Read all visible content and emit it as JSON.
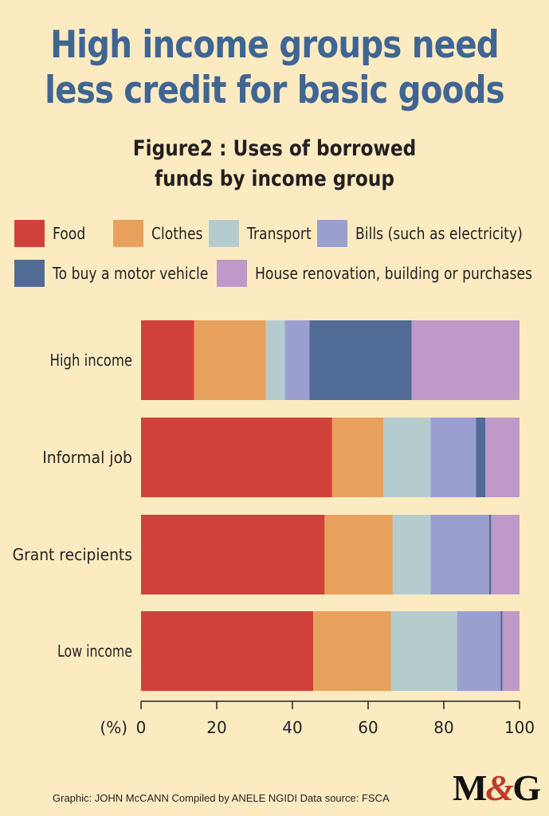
{
  "headline": [
    "High income groups need",
    "less credit for basic goods"
  ],
  "subtitle": [
    "Figure2 : Uses of borrowed",
    "funds by income group"
  ],
  "credit": "Graphic: JOHN McCANN  Compiled by ANELE NGIDI  Data source: FSCA",
  "logo": {
    "left": "M",
    "amp": "&",
    "right": "G"
  },
  "chart_data": {
    "type": "bar",
    "orientation": "horizontal",
    "stacked": true,
    "title": "Figure2 : Uses of borrowed funds by income group",
    "xlabel": "(%)",
    "xlim": [
      0,
      100
    ],
    "xticks": [
      0,
      20,
      40,
      60,
      80,
      100
    ],
    "grid": false,
    "legend_position": "top",
    "categories": [
      "High income",
      "Informal job",
      "Grant recipients",
      "Low income"
    ],
    "series": [
      {
        "name": "Food",
        "color": "#d1413b",
        "values": [
          14,
          50.5,
          48.5,
          45.5
        ]
      },
      {
        "name": "Clothes",
        "color": "#e8a15d",
        "values": [
          19,
          13.5,
          18,
          20.5
        ]
      },
      {
        "name": "Transport",
        "color": "#b5ccce",
        "values": [
          5,
          12.5,
          10,
          17.5
        ]
      },
      {
        "name": "Bills (such as electricity)",
        "color": "#9b9fd0",
        "values": [
          6.5,
          12,
          15.5,
          11.5
        ]
      },
      {
        "name": "To buy a motor vehicle",
        "color": "#4f6b96",
        "values": [
          27,
          2.5,
          0.5,
          0.5
        ]
      },
      {
        "name": "House renovation, building or purchases",
        "color": "#bf99c8",
        "values": [
          28.5,
          9,
          7.5,
          4.5
        ]
      }
    ]
  }
}
